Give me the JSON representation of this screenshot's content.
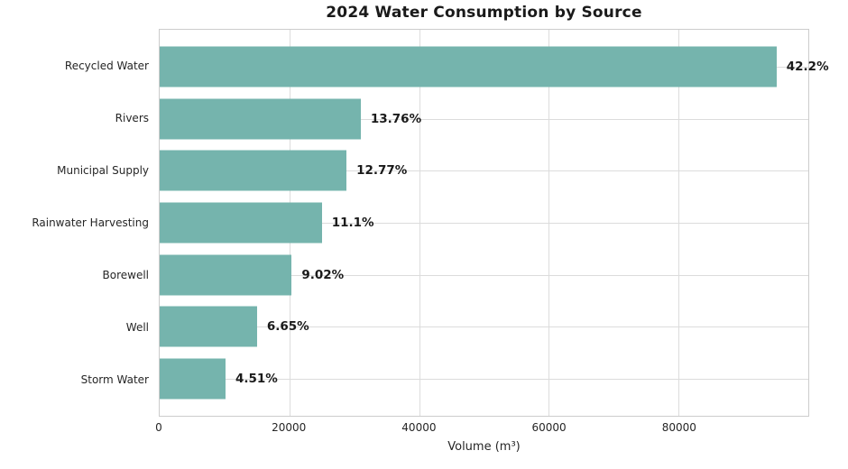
{
  "chart_data": {
    "type": "bar",
    "orientation": "horizontal",
    "title": "2024 Water Consumption by Source",
    "xlabel": "Volume (m³)",
    "categories": [
      "Recycled Water",
      "Rivers",
      "Municipal Supply",
      "Rainwater Harvesting",
      "Borewell",
      "Well",
      "Storm Water"
    ],
    "values": [
      95100,
      31000,
      28800,
      25000,
      20350,
      15000,
      10150
    ],
    "percent_labels": [
      "42.2%",
      "13.76%",
      "12.77%",
      "11.1%",
      "9.02%",
      "6.65%",
      "4.51%"
    ],
    "xlim": [
      0,
      100000
    ],
    "x_ticks": [
      0,
      20000,
      40000,
      60000,
      80000
    ],
    "grid": true,
    "legend": "none",
    "colors": {
      "bar": "#75b4ad",
      "grid": "#dcdcdc",
      "spine": "#cccccc",
      "text": "#262626",
      "title": "#1a1a1a",
      "value_label": "#1a1a1a",
      "background": "#ffffff"
    }
  }
}
